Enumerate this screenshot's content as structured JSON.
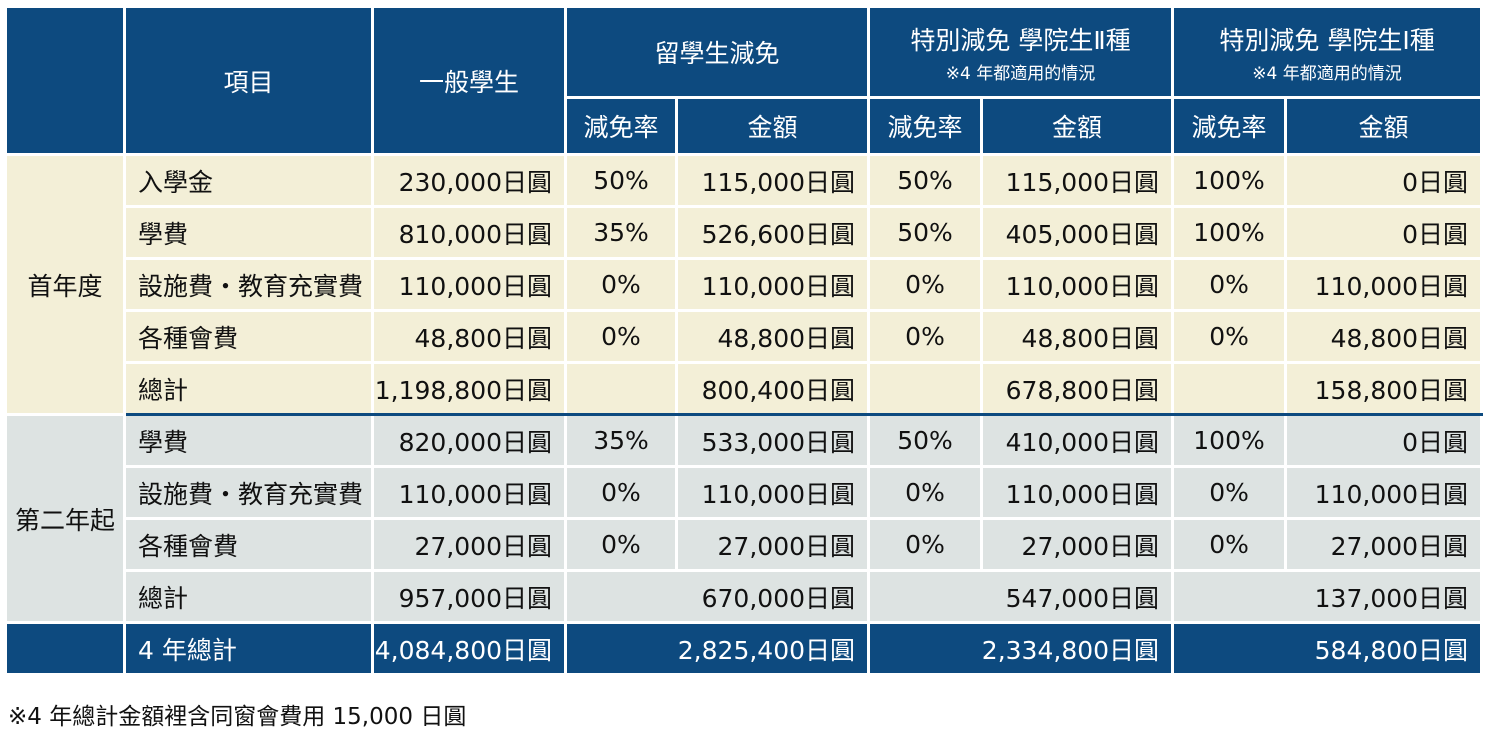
{
  "header": {
    "item": "項目",
    "general": "一般學生",
    "intl": "留學生減免",
    "special2": "特別減免 學院生Ⅱ種",
    "special2_note": "※4 年都適用的情況",
    "special1": "特別減免 學院生Ⅰ種",
    "special1_note": "※4 年都適用的情況",
    "rate": "減免率",
    "amount": "金額"
  },
  "year1": {
    "label": "首年度",
    "rows": [
      {
        "item": "入學金",
        "general": "230,000日圓",
        "r1": "50%",
        "a1": "115,000日圓",
        "r2": "50%",
        "a2": "115,000日圓",
        "r3": "100%",
        "a3": "0日圓"
      },
      {
        "item": "學費",
        "general": "810,000日圓",
        "r1": "35%",
        "a1": "526,600日圓",
        "r2": "50%",
        "a2": "405,000日圓",
        "r3": "100%",
        "a3": "0日圓"
      },
      {
        "item": "設施費・教育充實費",
        "general": "110,000日圓",
        "r1": "0%",
        "a1": "110,000日圓",
        "r2": "0%",
        "a2": "110,000日圓",
        "r3": "0%",
        "a3": "110,000日圓"
      },
      {
        "item": "各種會費",
        "general": "48,800日圓",
        "r1": "0%",
        "a1": "48,800日圓",
        "r2": "0%",
        "a2": "48,800日圓",
        "r3": "0%",
        "a3": "48,800日圓"
      }
    ],
    "total": {
      "item": "總計",
      "general": "1,198,800日圓",
      "a1": "800,400日圓",
      "a2": "678,800日圓",
      "a3": "158,800日圓"
    }
  },
  "year2": {
    "label": "第二年起",
    "rows": [
      {
        "item": "學費",
        "general": "820,000日圓",
        "r1": "35%",
        "a1": "533,000日圓",
        "r2": "50%",
        "a2": "410,000日圓",
        "r3": "100%",
        "a3": "0日圓"
      },
      {
        "item": "設施費・教育充實費",
        "general": "110,000日圓",
        "r1": "0%",
        "a1": "110,000日圓",
        "r2": "0%",
        "a2": "110,000日圓",
        "r3": "0%",
        "a3": "110,000日圓"
      },
      {
        "item": "各種會費",
        "general": "27,000日圓",
        "r1": "0%",
        "a1": "27,000日圓",
        "r2": "0%",
        "a2": "27,000日圓",
        "r3": "0%",
        "a3": "27,000日圓"
      }
    ],
    "total": {
      "item": "總計",
      "general": "957,000日圓",
      "a1": "670,000日圓",
      "a2": "547,000日圓",
      "a3": "137,000日圓"
    }
  },
  "grand_total": {
    "item": "4 年總計",
    "general": "4,084,800日圓",
    "a1": "2,825,400日圓",
    "a2": "2,334,800日圓",
    "a3": "584,800日圓"
  },
  "footnote": "※4 年總計金額裡含同窗會費用 15,000 日圓",
  "colors": {
    "header_bg": "#0d4a7f",
    "year1_bg": "#f3efd7",
    "year2_bg": "#dde3e2"
  }
}
